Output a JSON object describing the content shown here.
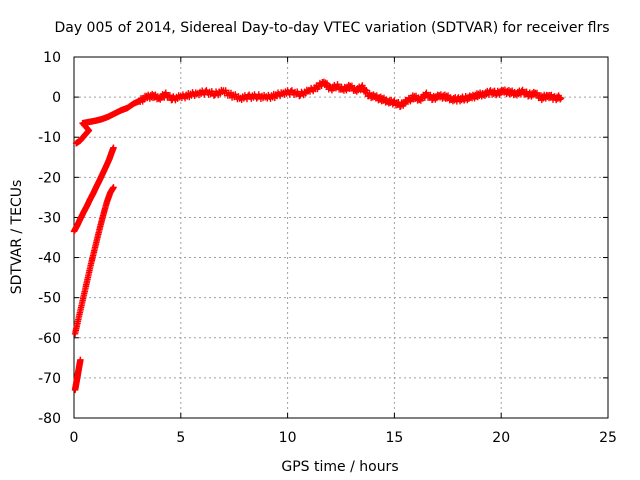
{
  "chart_data": {
    "type": "scatter",
    "title": "Day 005 of 2014, Sidereal Day-to-day VTEC variation (SDTVAR) for receiver flrs",
    "xlabel": "GPS time / hours",
    "ylabel": "SDTVAR / TECUs",
    "xlim": [
      0,
      25
    ],
    "ylim": [
      -80,
      10
    ],
    "xticks": [
      0,
      5,
      10,
      15,
      20,
      25
    ],
    "yticks": [
      -80,
      -70,
      -60,
      -50,
      -40,
      -30,
      -20,
      -10,
      0,
      10
    ],
    "grid": true,
    "marker": "+",
    "color": "#ff0000",
    "series": [
      {
        "name": "main-trace",
        "points": [
          [
            0.1,
            -11.5
          ],
          [
            0.3,
            -10.8
          ],
          [
            0.5,
            -9.5
          ],
          [
            0.7,
            -8.3
          ],
          [
            0.4,
            -6.5
          ],
          [
            0.7,
            -6.2
          ],
          [
            1.0,
            -5.9
          ],
          [
            1.3,
            -5.5
          ],
          [
            1.6,
            -4.9
          ],
          [
            1.9,
            -4.1
          ],
          [
            2.2,
            -3.3
          ],
          [
            2.5,
            -2.7
          ],
          [
            2.8,
            -1.6
          ],
          [
            3.1,
            -0.9
          ],
          [
            3.4,
            0.0
          ],
          [
            3.7,
            0.3
          ],
          [
            4.0,
            -0.2
          ],
          [
            4.3,
            0.6
          ],
          [
            4.6,
            -0.4
          ],
          [
            5.0,
            0.0
          ],
          [
            5.4,
            0.5
          ],
          [
            5.8,
            1.0
          ],
          [
            6.2,
            1.2
          ],
          [
            6.6,
            0.8
          ],
          [
            7.0,
            1.4
          ],
          [
            7.4,
            0.4
          ],
          [
            7.8,
            -0.2
          ],
          [
            8.2,
            0.1
          ],
          [
            8.6,
            0.2
          ],
          [
            9.0,
            -0.1
          ],
          [
            9.4,
            0.3
          ],
          [
            9.8,
            1.1
          ],
          [
            10.2,
            1.2
          ],
          [
            10.6,
            0.7
          ],
          [
            11.0,
            1.5
          ],
          [
            11.4,
            2.5
          ],
          [
            11.7,
            3.8
          ],
          [
            12.0,
            2.0
          ],
          [
            12.3,
            2.8
          ],
          [
            12.6,
            1.8
          ],
          [
            12.9,
            2.6
          ],
          [
            13.2,
            1.8
          ],
          [
            13.5,
            2.4
          ],
          [
            13.8,
            0.5
          ],
          [
            14.1,
            0.0
          ],
          [
            14.4,
            -0.5
          ],
          [
            14.7,
            -1.0
          ],
          [
            15.0,
            -1.4
          ],
          [
            15.3,
            -2.0
          ],
          [
            15.6,
            -1.0
          ],
          [
            15.9,
            0.0
          ],
          [
            16.2,
            -0.5
          ],
          [
            16.5,
            0.6
          ],
          [
            16.8,
            -0.3
          ],
          [
            17.1,
            0.2
          ],
          [
            17.4,
            0.1
          ],
          [
            17.7,
            -0.5
          ],
          [
            18.0,
            -0.6
          ],
          [
            18.3,
            -0.3
          ],
          [
            18.6,
            -0.1
          ],
          [
            18.9,
            0.5
          ],
          [
            19.2,
            0.8
          ],
          [
            19.5,
            1.2
          ],
          [
            19.8,
            1.0
          ],
          [
            20.1,
            1.4
          ],
          [
            20.4,
            1.2
          ],
          [
            20.7,
            0.9
          ],
          [
            21.0,
            1.3
          ],
          [
            21.3,
            0.6
          ],
          [
            21.6,
            0.8
          ],
          [
            21.9,
            -0.2
          ],
          [
            22.2,
            0.4
          ],
          [
            22.5,
            -0.3
          ],
          [
            22.8,
            0.0
          ]
        ]
      },
      {
        "name": "ramp-1",
        "points": [
          [
            0.0,
            -33.5
          ],
          [
            0.15,
            -32.0
          ],
          [
            0.3,
            -30.3
          ],
          [
            0.45,
            -28.7
          ],
          [
            0.6,
            -27.2
          ],
          [
            0.75,
            -25.5
          ],
          [
            0.9,
            -24.0
          ],
          [
            1.05,
            -22.3
          ],
          [
            1.2,
            -20.7
          ],
          [
            1.35,
            -19.0
          ],
          [
            1.5,
            -17.3
          ],
          [
            1.65,
            -15.5
          ],
          [
            1.75,
            -14.0
          ],
          [
            1.85,
            -12.6
          ]
        ]
      },
      {
        "name": "ramp-2",
        "points": [
          [
            0.05,
            -59.0
          ],
          [
            0.2,
            -55.5
          ],
          [
            0.35,
            -52.0
          ],
          [
            0.5,
            -48.5
          ],
          [
            0.65,
            -45.0
          ],
          [
            0.8,
            -41.5
          ],
          [
            0.95,
            -38.3
          ],
          [
            1.1,
            -35.0
          ],
          [
            1.25,
            -31.8
          ],
          [
            1.4,
            -28.8
          ],
          [
            1.55,
            -26.0
          ],
          [
            1.7,
            -23.8
          ],
          [
            1.85,
            -22.5
          ]
        ]
      },
      {
        "name": "ramp-3",
        "points": [
          [
            0.05,
            -73.0
          ],
          [
            0.1,
            -71.5
          ],
          [
            0.15,
            -70.0
          ],
          [
            0.2,
            -68.5
          ],
          [
            0.25,
            -67.0
          ],
          [
            0.3,
            -65.5
          ]
        ]
      }
    ]
  }
}
